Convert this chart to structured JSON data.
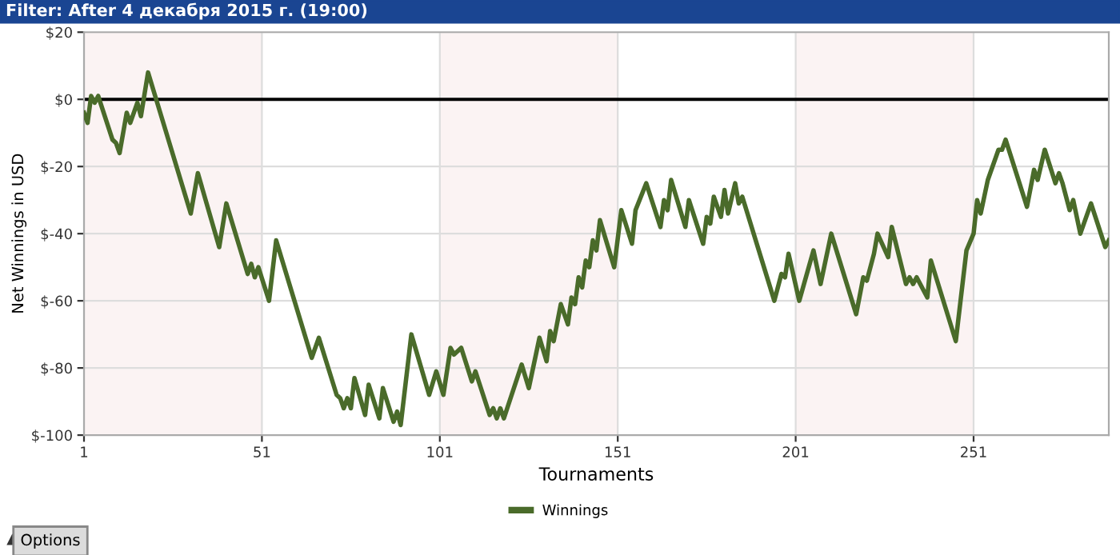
{
  "chart_data": {
    "type": "line",
    "title": "Filter: After 4 декабря 2015 г. (19:00)",
    "xlabel": "Tournaments",
    "ylabel": "Net Winnings in USD",
    "annotations": [
      "Options"
    ],
    "series": [
      {
        "name": "Winnings",
        "color": "#4a6b2a",
        "x": [
          1,
          2,
          3,
          4,
          5,
          9,
          10,
          11,
          13,
          14,
          16,
          17,
          19,
          21,
          31,
          33,
          39,
          41,
          47,
          48,
          49,
          50,
          53,
          55,
          65,
          67,
          72,
          73,
          74,
          75,
          76,
          77,
          80,
          81,
          84,
          85,
          88,
          89,
          90,
          93,
          98,
          100,
          102,
          104,
          105,
          107,
          110,
          111,
          115,
          116,
          117,
          118,
          119,
          124,
          126,
          129,
          131,
          132,
          133,
          135,
          137,
          138,
          139,
          140,
          141,
          142,
          143,
          144,
          145,
          146,
          150,
          152,
          155,
          156,
          159,
          163,
          164,
          165,
          166,
          170,
          171,
          175,
          176,
          177,
          178,
          180,
          181,
          182,
          184,
          185,
          186,
          195,
          197,
          198,
          199,
          202,
          206,
          208,
          210,
          211,
          218,
          220,
          221,
          223,
          224,
          227,
          228,
          232,
          233,
          234,
          235,
          238,
          239,
          246,
          249,
          251,
          252,
          253,
          255,
          258,
          259,
          260,
          266,
          268,
          269,
          271,
          274,
          275,
          276,
          278,
          279,
          281,
          284,
          288,
          289
        ],
        "values": [
          -4,
          -7,
          1,
          -1,
          1,
          -12,
          -13,
          -16,
          -4,
          -7,
          -1,
          -5,
          8,
          1,
          -34,
          -22,
          -44,
          -31,
          -52,
          -49,
          -53,
          -50,
          -60,
          -42,
          -77,
          -71,
          -88,
          -89,
          -92,
          -89,
          -92,
          -83,
          -94,
          -85,
          -95,
          -86,
          -96,
          -93,
          -97,
          -70,
          -88,
          -81,
          -88,
          -74,
          -76,
          -74,
          -84,
          -81,
          -94,
          -92,
          -95,
          -92,
          -95,
          -79,
          -86,
          -71,
          -78,
          -69,
          -72,
          -61,
          -67,
          -59,
          -61,
          -53,
          -56,
          -48,
          -50,
          -42,
          -45,
          -36,
          -50,
          -33,
          -43,
          -33,
          -25,
          -38,
          -30,
          -33,
          -24,
          -38,
          -30,
          -43,
          -35,
          -37,
          -29,
          -35,
          -27,
          -34,
          -25,
          -31,
          -29,
          -60,
          -52,
          -53,
          -46,
          -60,
          -45,
          -55,
          -45,
          -40,
          -64,
          -53,
          -54,
          -46,
          -40,
          -47,
          -38,
          -55,
          -53,
          -55,
          -53,
          -59,
          -48,
          -72,
          -45,
          -40,
          -30,
          -34,
          -24,
          -15,
          -15,
          -12,
          -32,
          -21,
          -24,
          -15,
          -25,
          -22,
          -25,
          -33,
          -30,
          -40,
          -31,
          -44,
          -42
        ]
      }
    ],
    "xlim": [
      1,
      289
    ],
    "xticks": [
      1,
      51,
      101,
      151,
      201,
      251
    ],
    "ylim": [
      -100,
      20
    ],
    "yticks": [
      {
        "value": 20,
        "label": "$20"
      },
      {
        "value": 0,
        "label": "$0"
      },
      {
        "value": -20,
        "label": "$-20"
      },
      {
        "value": -40,
        "label": "$-40"
      },
      {
        "value": -60,
        "label": "$-60"
      },
      {
        "value": -80,
        "label": "$-80"
      },
      {
        "value": -100,
        "label": "$-100"
      }
    ],
    "ref_lines": [
      {
        "axis": "y",
        "value": 0,
        "color": "#000000"
      }
    ],
    "bands": [
      {
        "axis": "x",
        "from": 1,
        "to": 51,
        "color": "#fbf3f3"
      },
      {
        "axis": "x",
        "from": 101,
        "to": 151,
        "color": "#fbf3f3"
      },
      {
        "axis": "x",
        "from": 201,
        "to": 251,
        "color": "#fbf3f3"
      }
    ],
    "grid": true,
    "legend": "bottom",
    "marker": "none",
    "line_style": "solid"
  }
}
